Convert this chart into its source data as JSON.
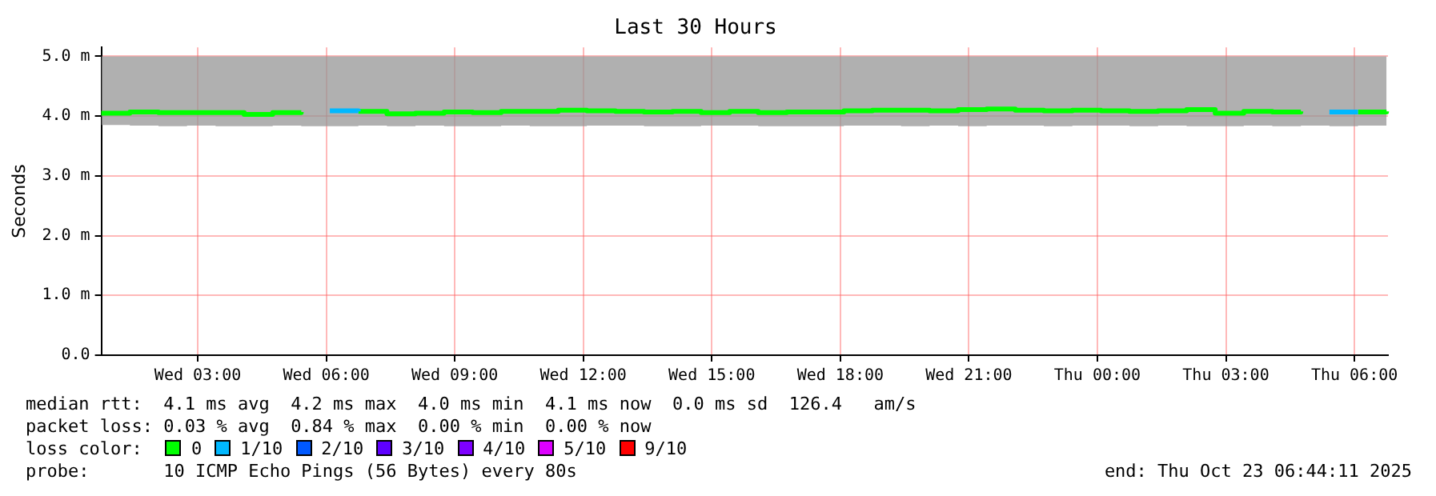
{
  "chart_data": {
    "type": "step",
    "title": "Last 30 Hours",
    "ylabel": "Seconds",
    "x": [
      "2025-10-22T00:45",
      "2025-10-22T01:25",
      "2025-10-22T02:05",
      "2025-10-22T02:45",
      "2025-10-22T03:25",
      "2025-10-22T04:05",
      "2025-10-22T04:45",
      "2025-10-22T05:25",
      "2025-10-22T06:05",
      "2025-10-22T06:45",
      "2025-10-22T07:25",
      "2025-10-22T08:05",
      "2025-10-22T08:45",
      "2025-10-22T09:25",
      "2025-10-22T10:05",
      "2025-10-22T10:45",
      "2025-10-22T11:25",
      "2025-10-22T12:05",
      "2025-10-22T12:45",
      "2025-10-22T13:25",
      "2025-10-22T14:05",
      "2025-10-22T14:45",
      "2025-10-22T15:25",
      "2025-10-22T16:05",
      "2025-10-22T16:45",
      "2025-10-22T17:25",
      "2025-10-22T18:05",
      "2025-10-22T18:45",
      "2025-10-22T19:25",
      "2025-10-22T20:05",
      "2025-10-22T20:45",
      "2025-10-22T21:25",
      "2025-10-22T22:05",
      "2025-10-22T22:45",
      "2025-10-22T23:25",
      "2025-10-23T00:05",
      "2025-10-23T00:45",
      "2025-10-23T01:25",
      "2025-10-23T02:05",
      "2025-10-23T02:45",
      "2025-10-23T03:25",
      "2025-10-23T04:05",
      "2025-10-23T04:45",
      "2025-10-23T05:25",
      "2025-10-23T06:05",
      "2025-10-23T06:45"
    ],
    "series": [
      {
        "name": "0",
        "color": "#00ff00",
        "values": [
          4.05,
          4.07,
          4.06,
          4.06,
          4.06,
          4.03,
          4.06,
          4.07,
          null,
          4.08,
          4.04,
          4.05,
          4.07,
          4.06,
          4.08,
          4.08,
          4.1,
          4.09,
          4.08,
          4.07,
          4.08,
          4.06,
          4.08,
          4.06,
          4.07,
          4.07,
          4.09,
          4.1,
          4.1,
          4.09,
          4.11,
          4.12,
          4.1,
          4.09,
          4.1,
          4.09,
          4.08,
          4.09,
          4.11,
          4.05,
          4.08,
          4.07,
          4.08,
          null,
          4.07,
          4.08
        ],
        "lower": [
          3.85,
          3.84,
          3.83,
          3.84,
          3.83,
          3.83,
          3.84,
          3.83,
          3.83,
          3.84,
          3.83,
          3.84,
          3.83,
          3.83,
          3.84,
          3.83,
          3.83,
          3.84,
          3.84,
          3.83,
          3.83,
          3.84,
          3.84,
          3.83,
          3.83,
          3.83,
          3.84,
          3.84,
          3.83,
          3.84,
          3.83,
          3.84,
          3.84,
          3.83,
          3.84,
          3.84,
          3.83,
          3.84,
          3.83,
          3.83,
          3.84,
          3.83,
          3.84,
          3.83,
          3.84,
          3.84
        ],
        "upper": [
          5.0,
          5.0,
          5.0,
          5.0,
          5.0,
          5.0,
          5.0,
          5.0,
          5.0,
          5.0,
          5.0,
          5.0,
          5.0,
          5.0,
          5.0,
          5.0,
          5.0,
          5.0,
          5.0,
          5.0,
          5.0,
          5.0,
          5.0,
          5.0,
          5.0,
          5.0,
          5.0,
          5.0,
          5.0,
          5.0,
          5.0,
          5.0,
          5.0,
          5.0,
          5.0,
          5.0,
          5.0,
          5.0,
          5.0,
          5.0,
          5.0,
          5.0,
          5.0,
          5.0,
          5.0,
          5.0
        ]
      },
      {
        "name": "1/10",
        "color": "#00b8ff",
        "values": [
          null,
          null,
          null,
          null,
          null,
          null,
          null,
          null,
          4.09,
          4.08,
          null,
          null,
          null,
          null,
          null,
          null,
          null,
          null,
          null,
          null,
          null,
          null,
          null,
          null,
          null,
          null,
          null,
          null,
          null,
          null,
          null,
          null,
          null,
          null,
          null,
          null,
          null,
          null,
          null,
          null,
          null,
          null,
          null,
          4.07,
          4.07,
          null
        ]
      },
      {
        "name": "2/10",
        "color": "#0059ff",
        "values": [
          null,
          null,
          null,
          null,
          null,
          null,
          null,
          null,
          null,
          null,
          null,
          null,
          null,
          null,
          null,
          null,
          null,
          null,
          null,
          null,
          null,
          null,
          null,
          null,
          null,
          null,
          null,
          null,
          null,
          null,
          null,
          null,
          null,
          null,
          null,
          null,
          null,
          null,
          null,
          null,
          null,
          null,
          null,
          null,
          null,
          null
        ]
      },
      {
        "name": "3/10",
        "color": "#5e00ff",
        "values": [
          null,
          null,
          null,
          null,
          null,
          null,
          null,
          null,
          null,
          null,
          null,
          null,
          null,
          null,
          null,
          null,
          null,
          null,
          null,
          null,
          null,
          null,
          null,
          null,
          null,
          null,
          null,
          null,
          null,
          null,
          null,
          null,
          null,
          null,
          null,
          null,
          null,
          null,
          null,
          null,
          null,
          null,
          null,
          null,
          null,
          null
        ]
      },
      {
        "name": "4/10",
        "color": "#7e00ff",
        "values": [
          null,
          null,
          null,
          null,
          null,
          null,
          null,
          null,
          null,
          null,
          null,
          null,
          null,
          null,
          null,
          null,
          null,
          null,
          null,
          null,
          null,
          null,
          null,
          null,
          null,
          null,
          null,
          null,
          null,
          null,
          null,
          null,
          null,
          null,
          null,
          null,
          null,
          null,
          null,
          null,
          null,
          null,
          null,
          null,
          null,
          null
        ]
      },
      {
        "name": "5/10",
        "color": "#dd00ff",
        "values": [
          null,
          null,
          null,
          null,
          null,
          null,
          null,
          null,
          null,
          null,
          null,
          null,
          null,
          null,
          null,
          null,
          null,
          null,
          null,
          null,
          null,
          null,
          null,
          null,
          null,
          null,
          null,
          null,
          null,
          null,
          null,
          null,
          null,
          null,
          null,
          null,
          null,
          null,
          null,
          null,
          null,
          null,
          null,
          null,
          null,
          null
        ]
      },
      {
        "name": "9/10",
        "color": "#ff0000",
        "values": [
          null,
          null,
          null,
          null,
          null,
          null,
          null,
          null,
          null,
          null,
          null,
          null,
          null,
          null,
          null,
          null,
          null,
          null,
          null,
          null,
          null,
          null,
          null,
          null,
          null,
          null,
          null,
          null,
          null,
          null,
          null,
          null,
          null,
          null,
          null,
          null,
          null,
          null,
          null,
          null,
          null,
          null,
          null,
          null,
          null,
          null
        ]
      }
    ],
    "legend": "bottom",
    "legend_title": "loss color:",
    "xlim": [
      "2025-10-22T00:45",
      "2025-10-23T06:47"
    ],
    "xticks": [
      {
        "value": "2025-10-22T03:00",
        "label": "Wed 03:00"
      },
      {
        "value": "2025-10-22T06:00",
        "label": "Wed 06:00"
      },
      {
        "value": "2025-10-22T09:00",
        "label": "Wed 09:00"
      },
      {
        "value": "2025-10-22T12:00",
        "label": "Wed 12:00"
      },
      {
        "value": "2025-10-22T15:00",
        "label": "Wed 15:00"
      },
      {
        "value": "2025-10-22T18:00",
        "label": "Wed 18:00"
      },
      {
        "value": "2025-10-22T21:00",
        "label": "Wed 21:00"
      },
      {
        "value": "2025-10-23T00:00",
        "label": "Thu 00:00"
      },
      {
        "value": "2025-10-23T03:00",
        "label": "Thu 03:00"
      },
      {
        "value": "2025-10-23T06:00",
        "label": "Thu 06:00"
      }
    ],
    "ylim": [
      0,
      5.15
    ],
    "yticks": [
      {
        "value": 0,
        "label": "0.0"
      },
      {
        "value": 1,
        "label": "1.0 m"
      },
      {
        "value": 2,
        "label": "2.0 m"
      },
      {
        "value": 3,
        "label": "3.0 m"
      },
      {
        "value": 4,
        "label": "4.0 m"
      },
      {
        "value": 5,
        "label": "5.0 m"
      }
    ],
    "grid": true,
    "marker": "none",
    "line_style": "solid",
    "annotations": [
      "median rtt:  4.1 ms avg  4.2 ms max  4.0 ms min  4.1 ms now  0.0 ms sd  126.4   am/s",
      "packet loss: 0.03 % avg  0.84 % max  0.00 % min  0.00 % now",
      "probe:       10 ICMP Echo Pings (56 Bytes) every 80s",
      "end: Thu Oct 23 06:44:11 2025"
    ]
  }
}
